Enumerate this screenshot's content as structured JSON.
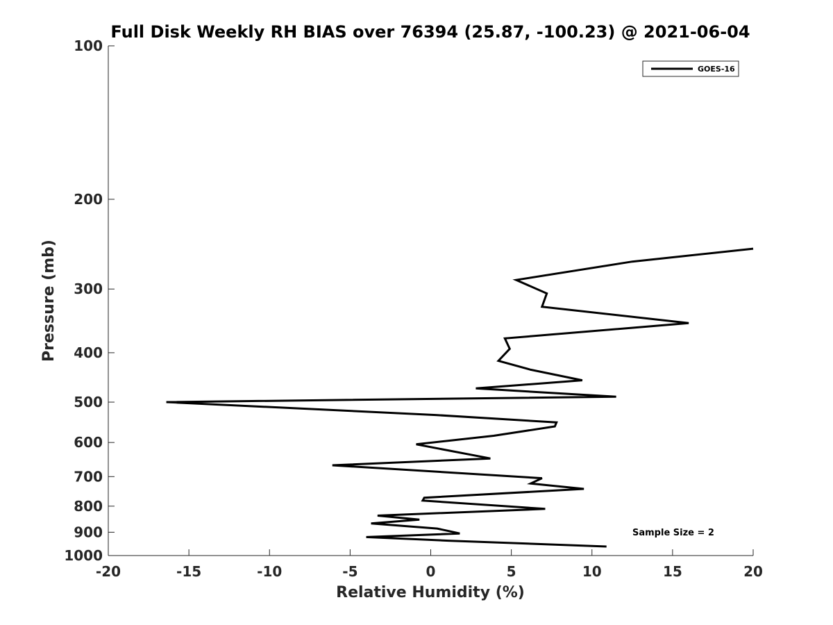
{
  "chart_data": {
    "type": "line",
    "title": "Full Disk Weekly RH BIAS over 76394 (25.87, -100.23) @ 2021-06-04",
    "xlabel": "Relative Humidity (%)",
    "ylabel": "Pressure (mb)",
    "xlim": [
      -20,
      20
    ],
    "ylim": [
      100,
      1000
    ],
    "y_scale": "log",
    "y_reversed": true,
    "x_ticks": [
      -20,
      -15,
      -10,
      -5,
      0,
      5,
      10,
      15,
      20
    ],
    "y_ticks": [
      100,
      200,
      300,
      400,
      500,
      600,
      700,
      800,
      900,
      1000
    ],
    "grid": false,
    "legend_position": "top-right",
    "series": [
      {
        "name": "GOES-16",
        "color": "#000000",
        "x": [
          10.9,
          1.1,
          -4.0,
          1.8,
          0.4,
          -3.7,
          -0.7,
          -3.3,
          7.1,
          -0.5,
          -0.4,
          9.5,
          6.2,
          6.9,
          -6.1,
          3.7,
          -0.9,
          3.9,
          7.7,
          7.8,
          0.3,
          -16.4,
          11.5,
          2.8,
          9.4,
          6.2,
          4.2,
          4.9,
          4.6,
          16.0,
          6.9,
          7.2,
          5.3,
          12.5,
          20.0
        ],
        "y": [
          960,
          935,
          920,
          905,
          885,
          865,
          850,
          835,
          810,
          780,
          770,
          740,
          722,
          705,
          665,
          645,
          605,
          582,
          558,
          548,
          530,
          500,
          488,
          470,
          453,
          432,
          415,
          393,
          375,
          350,
          325,
          306,
          288,
          265,
          250
        ]
      }
    ],
    "annotations": [
      "Sample Size = 2"
    ]
  }
}
